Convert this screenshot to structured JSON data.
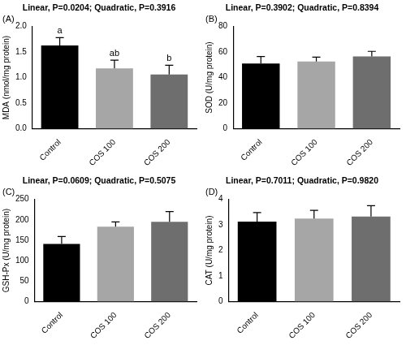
{
  "chart_data": [
    {
      "type": "bar",
      "panel": "(A)",
      "title": "Linear, P=0.0204; Quadratic, P=0.3916",
      "y_label": "MDA (nmol/mg protein)",
      "categories": [
        "Control",
        "COS 100",
        "COS 200"
      ],
      "values": [
        1.63,
        1.18,
        1.06
      ],
      "errors": [
        0.15,
        0.16,
        0.18
      ],
      "letters": [
        "a",
        "ab",
        "b"
      ],
      "colors": [
        "#000000",
        "#a6a6a6",
        "#6e6e6e"
      ],
      "ylim": [
        0,
        2
      ],
      "yticks": [
        {
          "value": 0,
          "label": "0.0"
        },
        0.5,
        {
          "value": 1,
          "label": "1.0"
        },
        1.5,
        {
          "value": 2,
          "label": "2.0"
        }
      ],
      "grid": false
    },
    {
      "type": "bar",
      "panel": "(B)",
      "title": "Linear, P=0.3902; Quadratic, P=0.8394",
      "y_label": "SOD (U/mg protein)",
      "categories": [
        "Control",
        "COS 100",
        "COS 200"
      ],
      "values": [
        51,
        52.5,
        56.5
      ],
      "errors": [
        5.5,
        3.5,
        4
      ],
      "colors": [
        "#000000",
        "#a6a6a6",
        "#6e6e6e"
      ],
      "ylim": [
        0,
        80
      ],
      "yticks": [
        0,
        20,
        40,
        60,
        80
      ],
      "grid": false
    },
    {
      "type": "bar",
      "panel": "(C)",
      "title": "Linear, P=0.0609; Quadratic, P=0.5075",
      "y_label": "GSH-Px (U/mg protein)",
      "categories": [
        "Control",
        "COS 100",
        "COS 200"
      ],
      "values": [
        141,
        183,
        195
      ],
      "errors": [
        18,
        12,
        25
      ],
      "colors": [
        "#000000",
        "#a6a6a6",
        "#6e6e6e"
      ],
      "ylim": [
        0,
        250
      ],
      "yticks": [
        0,
        50,
        100,
        150,
        200,
        250
      ],
      "grid": false
    },
    {
      "type": "bar",
      "panel": "(D)",
      "title": "Linear, P=0.7011; Quadratic, P=0.9820",
      "y_label": "CAT (U/mg protein)",
      "categories": [
        "Control",
        "COS 100",
        "COS 200"
      ],
      "values": [
        3.13,
        3.25,
        3.33
      ],
      "errors": [
        0.35,
        0.32,
        0.42
      ],
      "colors": [
        "#000000",
        "#a6a6a6",
        "#6e6e6e"
      ],
      "ylim": [
        0,
        4
      ],
      "yticks": [
        0,
        1,
        2,
        3,
        4
      ],
      "grid": false
    }
  ]
}
